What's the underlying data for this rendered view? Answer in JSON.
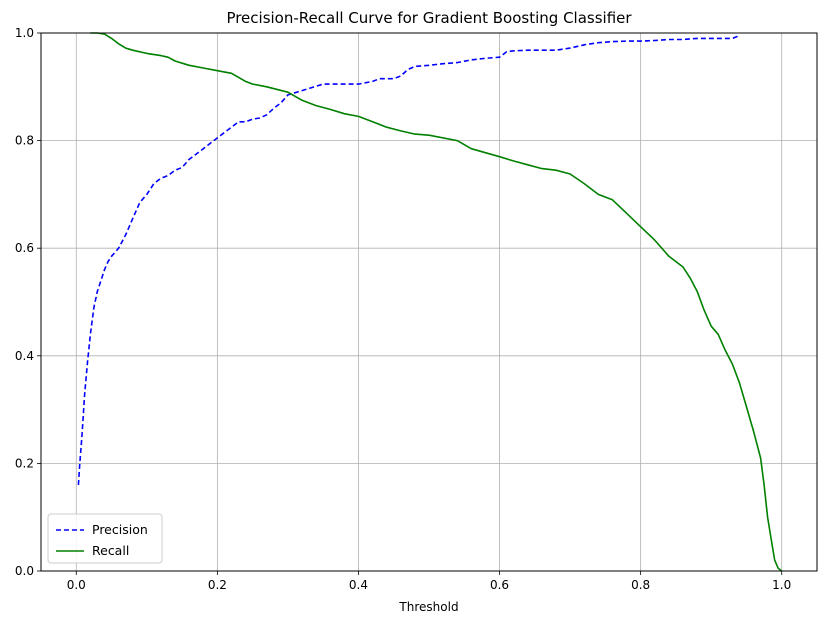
{
  "chart_data": {
    "type": "line",
    "title": "Precision-Recall Curve for Gradient Boosting Classifier",
    "xlabel": "Threshold",
    "ylabel": "",
    "xlim": [
      -0.05,
      1.05
    ],
    "ylim": [
      0,
      1
    ],
    "xticks": [
      0.0,
      0.2,
      0.4,
      0.6,
      0.8,
      1.0
    ],
    "xtick_labels": [
      "0.0",
      "0.2",
      "0.4",
      "0.6",
      "0.8",
      "1.0"
    ],
    "yticks": [
      0.0,
      0.2,
      0.4,
      0.6,
      0.8,
      1.0
    ],
    "ytick_labels": [
      "0.0",
      "0.2",
      "0.4",
      "0.6",
      "0.8",
      "1.0"
    ],
    "grid": true,
    "legend_position": "lower-left",
    "series": [
      {
        "name": "Precision",
        "color": "#0000ff",
        "dash": "dashed",
        "x": [
          0.003,
          0.005,
          0.008,
          0.012,
          0.016,
          0.02,
          0.025,
          0.03,
          0.035,
          0.04,
          0.045,
          0.05,
          0.06,
          0.07,
          0.08,
          0.09,
          0.1,
          0.11,
          0.12,
          0.13,
          0.14,
          0.15,
          0.16,
          0.17,
          0.18,
          0.19,
          0.2,
          0.21,
          0.22,
          0.23,
          0.24,
          0.25,
          0.26,
          0.27,
          0.28,
          0.29,
          0.3,
          0.32,
          0.35,
          0.37,
          0.4,
          0.42,
          0.43,
          0.45,
          0.46,
          0.47,
          0.48,
          0.5,
          0.52,
          0.54,
          0.56,
          0.58,
          0.6,
          0.61,
          0.62,
          0.64,
          0.66,
          0.68,
          0.7,
          0.72,
          0.74,
          0.76,
          0.78,
          0.8,
          0.82,
          0.84,
          0.86,
          0.88,
          0.9,
          0.92,
          0.93,
          0.94
        ],
        "y": [
          0.16,
          0.2,
          0.25,
          0.33,
          0.39,
          0.44,
          0.49,
          0.52,
          0.54,
          0.56,
          0.575,
          0.585,
          0.6,
          0.625,
          0.655,
          0.685,
          0.7,
          0.72,
          0.73,
          0.735,
          0.745,
          0.75,
          0.765,
          0.775,
          0.785,
          0.795,
          0.805,
          0.815,
          0.825,
          0.835,
          0.835,
          0.84,
          0.842,
          0.848,
          0.86,
          0.87,
          0.885,
          0.893,
          0.905,
          0.905,
          0.905,
          0.91,
          0.915,
          0.915,
          0.92,
          0.932,
          0.938,
          0.94,
          0.943,
          0.945,
          0.95,
          0.953,
          0.955,
          0.965,
          0.967,
          0.968,
          0.968,
          0.968,
          0.972,
          0.978,
          0.982,
          0.984,
          0.985,
          0.985,
          0.986,
          0.988,
          0.988,
          0.99,
          0.99,
          0.99,
          0.99,
          0.995
        ]
      },
      {
        "name": "Recall",
        "color": "#008000",
        "dash": "solid",
        "x": [
          0.02,
          0.03,
          0.04,
          0.05,
          0.06,
          0.07,
          0.08,
          0.1,
          0.12,
          0.13,
          0.14,
          0.16,
          0.18,
          0.2,
          0.22,
          0.24,
          0.25,
          0.27,
          0.3,
          0.32,
          0.34,
          0.36,
          0.38,
          0.4,
          0.42,
          0.44,
          0.46,
          0.48,
          0.5,
          0.54,
          0.56,
          0.6,
          0.62,
          0.64,
          0.66,
          0.68,
          0.7,
          0.72,
          0.74,
          0.76,
          0.78,
          0.8,
          0.82,
          0.84,
          0.86,
          0.87,
          0.88,
          0.89,
          0.9,
          0.91,
          0.92,
          0.93,
          0.94,
          0.95,
          0.96,
          0.97,
          0.975,
          0.98,
          0.985,
          0.99,
          0.995,
          1.0
        ],
        "y": [
          1.0,
          1.0,
          0.998,
          0.99,
          0.98,
          0.972,
          0.968,
          0.962,
          0.958,
          0.955,
          0.948,
          0.94,
          0.935,
          0.93,
          0.925,
          0.91,
          0.905,
          0.9,
          0.89,
          0.875,
          0.865,
          0.858,
          0.85,
          0.845,
          0.835,
          0.825,
          0.818,
          0.812,
          0.81,
          0.8,
          0.785,
          0.77,
          0.762,
          0.755,
          0.748,
          0.745,
          0.738,
          0.72,
          0.7,
          0.69,
          0.665,
          0.64,
          0.615,
          0.585,
          0.565,
          0.545,
          0.52,
          0.485,
          0.455,
          0.44,
          0.41,
          0.385,
          0.35,
          0.305,
          0.26,
          0.21,
          0.16,
          0.1,
          0.06,
          0.02,
          0.005,
          0.0
        ]
      }
    ]
  }
}
